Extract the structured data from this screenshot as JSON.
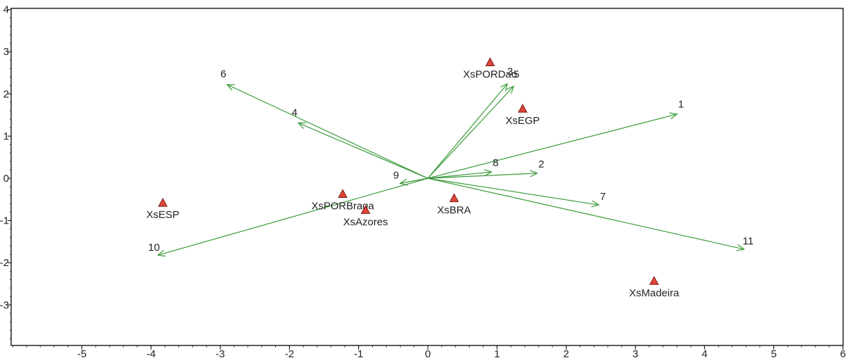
{
  "chart_data": {
    "type": "scatter",
    "subtype": "biplot",
    "title": "",
    "xlabel": "",
    "ylabel": "",
    "xlim": [
      -6,
      6
    ],
    "ylim": [
      -4,
      4
    ],
    "x_ticks": [
      -5,
      -4,
      -3,
      -2,
      -1,
      0,
      1,
      2,
      3,
      4,
      5,
      6
    ],
    "y_ticks": [
      4,
      3,
      2,
      1,
      0,
      -1,
      -2,
      -3
    ],
    "vectors": [
      {
        "label": "1",
        "x": 3.6,
        "y": 1.52
      },
      {
        "label": "2",
        "x": 1.58,
        "y": 0.12
      },
      {
        "label": "3",
        "x": 1.15,
        "y": 2.24
      },
      {
        "label": "4",
        "x": -1.87,
        "y": 1.31
      },
      {
        "label": "5",
        "x": 1.24,
        "y": 2.18
      },
      {
        "label": "6",
        "x": -2.9,
        "y": 2.22
      },
      {
        "label": "7",
        "x": 2.47,
        "y": -0.63
      },
      {
        "label": "8",
        "x": 0.92,
        "y": 0.15
      },
      {
        "label": "9",
        "x": -0.4,
        "y": -0.12
      },
      {
        "label": "10",
        "x": -3.9,
        "y": -1.82
      },
      {
        "label": "11",
        "x": 4.57,
        "y": -1.68
      }
    ],
    "points": [
      {
        "label": "XsPORDao",
        "x": 0.9,
        "y": 2.75
      },
      {
        "label": "XsEGP",
        "x": 1.37,
        "y": 1.65
      },
      {
        "label": "XsESP",
        "x": -3.83,
        "y": -0.58
      },
      {
        "label": "XsPORBraga",
        "x": -1.23,
        "y": -0.37
      },
      {
        "label": "XsAzores",
        "x": -0.9,
        "y": -0.75
      },
      {
        "label": "XsBRA",
        "x": 0.38,
        "y": -0.47
      },
      {
        "label": "XsMadeira",
        "x": 3.27,
        "y": -2.43
      }
    ],
    "colors": {
      "vector": "#3a9a3a",
      "marker_fill": "#e0453a",
      "marker_stroke": "#7a1a12",
      "axis": "#000000"
    }
  }
}
